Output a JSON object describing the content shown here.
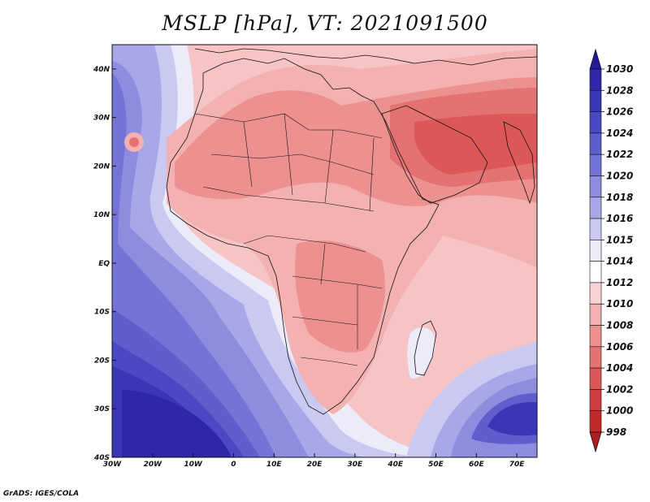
{
  "title": "MSLP [hPa], VT: 2021091500",
  "credit": "GrADS: IGES/COLA",
  "map": {
    "projection": "lat-lon",
    "lon_range": [
      -30,
      75
    ],
    "lat_range": [
      -40,
      45
    ],
    "lon_ticks": [
      {
        "value": -30,
        "label": "30W"
      },
      {
        "value": -20,
        "label": "20W"
      },
      {
        "value": -10,
        "label": "10W"
      },
      {
        "value": 0,
        "label": "0"
      },
      {
        "value": 10,
        "label": "10E"
      },
      {
        "value": 20,
        "label": "20E"
      },
      {
        "value": 30,
        "label": "30E"
      },
      {
        "value": 40,
        "label": "40E"
      },
      {
        "value": 50,
        "label": "50E"
      },
      {
        "value": 60,
        "label": "60E"
      },
      {
        "value": 70,
        "label": "70E"
      }
    ],
    "lat_ticks": [
      {
        "value": 40,
        "label": "40N"
      },
      {
        "value": 30,
        "label": "30N"
      },
      {
        "value": 20,
        "label": "20N"
      },
      {
        "value": 10,
        "label": "10N"
      },
      {
        "value": 0,
        "label": "EQ"
      },
      {
        "value": -10,
        "label": "10S"
      },
      {
        "value": -20,
        "label": "20S"
      },
      {
        "value": -30,
        "label": "30S"
      },
      {
        "value": -40,
        "label": "40S"
      }
    ]
  },
  "colorbar": {
    "orientation": "vertical",
    "labels": [
      "1030",
      "1028",
      "1026",
      "1024",
      "1022",
      "1020",
      "1018",
      "1016",
      "1015",
      "1014",
      "1012",
      "1010",
      "1008",
      "1006",
      "1004",
      "1002",
      "1000",
      "998"
    ],
    "colors": [
      "#241a9a",
      "#2e28a8",
      "#3b36b6",
      "#4a48c2",
      "#5e5ecd",
      "#7474d6",
      "#8d8ddf",
      "#a8a8e8",
      "#c9c9f1",
      "#ecebfa",
      "#ffffff",
      "#f9d3d3",
      "#f3b1b1",
      "#ec9090",
      "#e57272",
      "#dc5757",
      "#d03f3f",
      "#c22a2a",
      "#b01f1f"
    ]
  }
}
